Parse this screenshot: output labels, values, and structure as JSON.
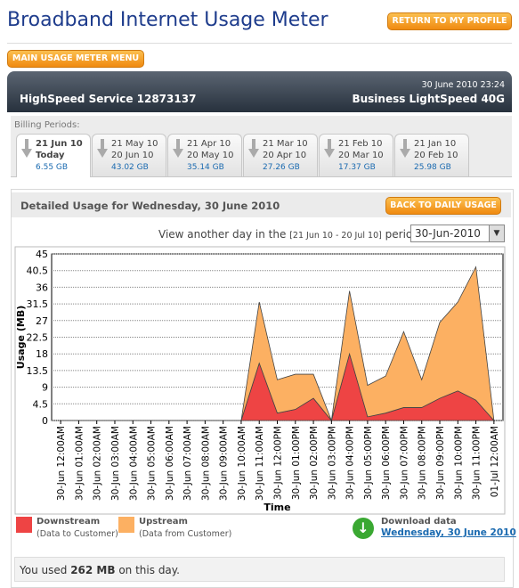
{
  "header": {
    "title": "Broadband Internet Usage Meter",
    "return_button": "RETURN TO MY PROFILE",
    "menu_button": "MAIN USAGE METER MENU"
  },
  "account": {
    "datetime": "30 June 2010 23:24",
    "service": "HighSpeed Service 12873137",
    "plan": "Business LightSpeed 40G"
  },
  "billing": {
    "label": "Billing Periods:",
    "periods": [
      {
        "start": "21 Jun 10",
        "end": "Today",
        "usage": "6.55 GB"
      },
      {
        "start": "21 May 10",
        "end": "20 Jun 10",
        "usage": "43.02 GB"
      },
      {
        "start": "21 Apr 10",
        "end": "20 May 10",
        "usage": "35.14 GB"
      },
      {
        "start": "21 Mar 10",
        "end": "20 Apr 10",
        "usage": "27.26 GB"
      },
      {
        "start": "21 Feb 10",
        "end": "20 Mar 10",
        "usage": "17.37 GB"
      },
      {
        "start": "21 Jan 10",
        "end": "20 Feb 10",
        "usage": "25.98 GB"
      }
    ]
  },
  "detail": {
    "title": "Detailed Usage for Wednesday, 30 June 2010",
    "back_button": "BACK TO DAILY USAGE",
    "view_prefix": "View another day in the",
    "range": "[21 Jun 10 - 20 Jul 10]",
    "view_suffix": "period:",
    "selected": "30-Jun-2010"
  },
  "chart_data": {
    "type": "area",
    "stacked": true,
    "xlabel": "Time",
    "ylabel": "Usage (MB)",
    "categories": [
      "30-Jun 12:00AM",
      "30-Jun 01:00AM",
      "30-Jun 02:00AM",
      "30-Jun 03:00AM",
      "30-Jun 04:00AM",
      "30-Jun 05:00AM",
      "30-Jun 06:00AM",
      "30-Jun 07:00AM",
      "30-Jun 08:00AM",
      "30-Jun 09:00AM",
      "30-Jun 10:00AM",
      "30-Jun 11:00AM",
      "30-Jun 12:00PM",
      "30-Jun 01:00PM",
      "30-Jun 02:00PM",
      "30-Jun 03:00PM",
      "30-Jun 04:00PM",
      "30-Jun 05:00PM",
      "30-Jun 06:00PM",
      "30-Jun 07:00PM",
      "30-Jun 08:00PM",
      "30-Jun 09:00PM",
      "30-Jun 10:00PM",
      "30-Jun 11:00PM",
      "01-Jul 12:00AM"
    ],
    "series": [
      {
        "name": "Downstream",
        "description": "(Data to Customer)",
        "color": "#ee4444",
        "values": [
          0,
          0,
          0,
          0,
          0,
          0,
          0,
          0,
          0,
          0,
          0,
          15.5,
          2,
          3,
          6,
          0,
          18,
          1,
          2,
          3.5,
          3.5,
          6,
          8,
          5.5,
          0
        ]
      },
      {
        "name": "Upstream",
        "description": "(Data from Customer)",
        "color": "#fcb062",
        "values": [
          0,
          0,
          0,
          0,
          0,
          0,
          0,
          0,
          0,
          0,
          0,
          16.5,
          9,
          9.5,
          6.5,
          0,
          17,
          8.5,
          10,
          20.5,
          7.5,
          20.5,
          24,
          36,
          0
        ]
      }
    ],
    "ylim": [
      0,
      45
    ],
    "yticks": [
      0,
      4.5,
      9,
      13.5,
      18,
      22.5,
      27,
      31.5,
      36,
      40.5,
      45
    ],
    "grid": true
  },
  "download": {
    "label": "Download data",
    "link": "Wednesday, 30 June 2010"
  },
  "summary": {
    "prefix": "You used",
    "amount": "262 MB",
    "suffix": "on this day."
  }
}
